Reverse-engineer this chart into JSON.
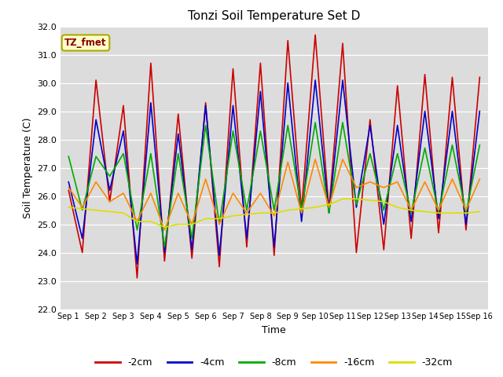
{
  "title": "Tonzi Soil Temperature Set D",
  "xlabel": "Time",
  "ylabel": "Soil Temperature (C)",
  "annotation": "TZ_fmet",
  "ylim": [
    22.0,
    32.0
  ],
  "yticks": [
    22.0,
    23.0,
    24.0,
    25.0,
    26.0,
    27.0,
    28.0,
    29.0,
    30.0,
    31.0,
    32.0
  ],
  "xtick_labels": [
    "Sep 1",
    "Sep 2",
    "Sep 3",
    "Sep 4",
    "Sep 5",
    "Sep 6",
    "Sep 7",
    "Sep 8",
    "Sep 9",
    "Sep 10",
    "Sep 11",
    "Sep 12",
    "Sep 13",
    "Sep 14",
    "Sep 15",
    "Sep 16"
  ],
  "fig_bg": "#ffffff",
  "plot_bg": "#dcdcdc",
  "grid_color": "#ffffff",
  "series": {
    "-2cm": {
      "color": "#cc0000",
      "lw": 1.2,
      "data": [
        26.2,
        24.0,
        30.1,
        25.8,
        29.2,
        23.1,
        30.7,
        23.7,
        28.9,
        23.8,
        29.3,
        23.5,
        30.5,
        24.2,
        30.7,
        23.9,
        31.5,
        25.5,
        31.7,
        25.5,
        31.4,
        24.0,
        28.7,
        24.1,
        29.9,
        24.5,
        30.3,
        24.7,
        30.2,
        24.8,
        30.2
      ]
    },
    "-4cm": {
      "color": "#0000cc",
      "lw": 1.2,
      "data": [
        26.5,
        24.5,
        28.7,
        26.2,
        28.3,
        23.6,
        29.3,
        24.0,
        28.2,
        24.1,
        29.2,
        23.9,
        29.2,
        24.5,
        29.7,
        24.2,
        30.0,
        25.1,
        30.1,
        25.4,
        30.1,
        25.6,
        28.5,
        25.0,
        28.5,
        25.1,
        29.0,
        25.2,
        29.0,
        25.0,
        29.0
      ]
    },
    "-8cm": {
      "color": "#00aa00",
      "lw": 1.2,
      "data": [
        27.4,
        25.5,
        27.4,
        26.7,
        27.5,
        24.8,
        27.5,
        24.2,
        27.5,
        24.5,
        28.5,
        25.0,
        28.3,
        25.5,
        28.3,
        25.5,
        28.5,
        25.5,
        28.6,
        25.4,
        28.6,
        25.7,
        27.5,
        25.5,
        27.5,
        25.4,
        27.7,
        25.4,
        27.8,
        25.4,
        27.8
      ]
    },
    "-16cm": {
      "color": "#ff8800",
      "lw": 1.2,
      "data": [
        26.3,
        25.6,
        26.5,
        25.8,
        26.1,
        25.1,
        26.1,
        24.8,
        26.1,
        25.0,
        26.6,
        25.0,
        26.1,
        25.4,
        26.1,
        25.3,
        27.2,
        25.4,
        27.3,
        25.6,
        27.3,
        26.3,
        26.5,
        26.3,
        26.5,
        25.5,
        26.5,
        25.5,
        26.6,
        25.5,
        26.6
      ]
    },
    "-32cm": {
      "color": "#dddd00",
      "lw": 1.2,
      "data": [
        25.6,
        25.55,
        25.5,
        25.45,
        25.4,
        25.1,
        25.1,
        24.9,
        25.0,
        25.0,
        25.2,
        25.2,
        25.3,
        25.35,
        25.4,
        25.4,
        25.5,
        25.55,
        25.6,
        25.7,
        25.9,
        25.9,
        25.85,
        25.8,
        25.6,
        25.5,
        25.45,
        25.4,
        25.4,
        25.4,
        25.45
      ]
    }
  },
  "legend_order": [
    "-2cm",
    "-4cm",
    "-8cm",
    "-16cm",
    "-32cm"
  ]
}
